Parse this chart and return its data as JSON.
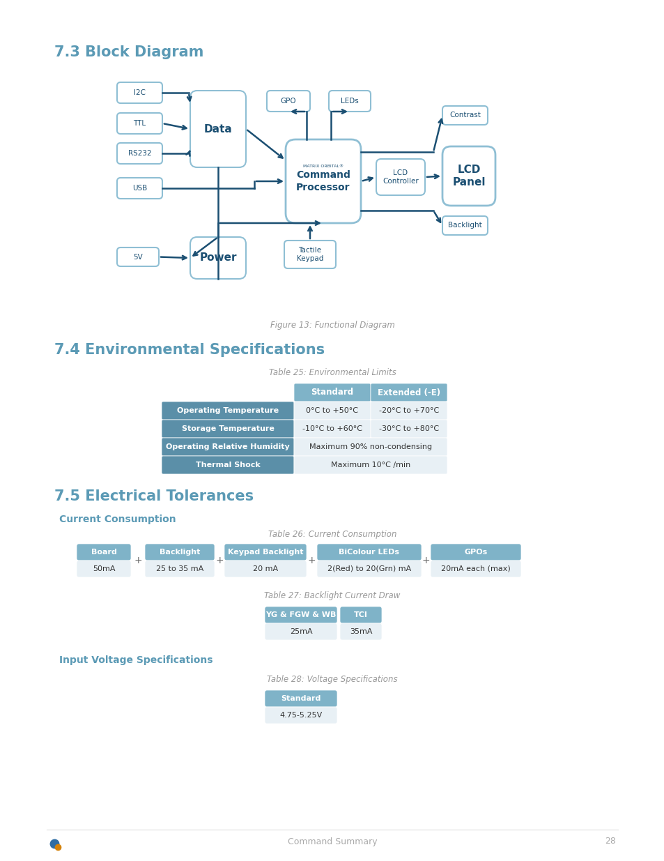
{
  "title_73": "7.3 Block Diagram",
  "title_74": "7.4 Environmental Specifications",
  "title_75": "7.5 Electrical Tolerances",
  "subtitle_current": "Current Consumption",
  "subtitle_voltage": "Input Voltage Specifications",
  "fig_caption": "Figure 13: Functional Diagram",
  "table25_caption": "Table 25: Environmental Limits",
  "table26_caption": "Table 26: Current Consumption",
  "table27_caption": "Table 27: Backlight Current Draw",
  "table28_caption": "Table 28: Voltage Specifications",
  "footer_text": "Command Summary",
  "footer_page": "28",
  "bg_color": "#ffffff",
  "heading_color": "#5b9ab5",
  "dark_blue": "#1b4f72",
  "box_border_color": "#8fbfd4",
  "table_header_color": "#7fb3c8",
  "table_row_color": "#5b8fa8",
  "table_data_bg": "#e8f0f5",
  "table_data_color": "#333333",
  "env_table": {
    "headers": [
      "",
      "Standard",
      "Extended (-E)"
    ],
    "rows": [
      [
        "Operating Temperature",
        "0°C to +50°C",
        "-20°C to +70°C"
      ],
      [
        "Storage Temperature",
        "-10°C to +60°C",
        "-30°C to +80°C"
      ],
      [
        "Operating Relative Humidity",
        "Maximum 90% non-condensing",
        ""
      ],
      [
        "Thermal Shock",
        "Maximum 10°C /min",
        ""
      ]
    ]
  },
  "current_table": {
    "headers": [
      "Board",
      "Backlight",
      "Keypad Backlight",
      "BiColour LEDs",
      "GPOs"
    ],
    "values": [
      "50mA",
      "25 to 35 mA",
      "20 mA",
      "2(Red) to 20(Grn) mA",
      "20mA each (max)"
    ]
  },
  "backlight_table": {
    "headers": [
      "YG & FGW & WB",
      "TCI"
    ],
    "values": [
      "25mA",
      "35mA"
    ]
  },
  "voltage_table": {
    "headers": [
      "Standard"
    ],
    "values": [
      "4.75-5.25V"
    ]
  }
}
